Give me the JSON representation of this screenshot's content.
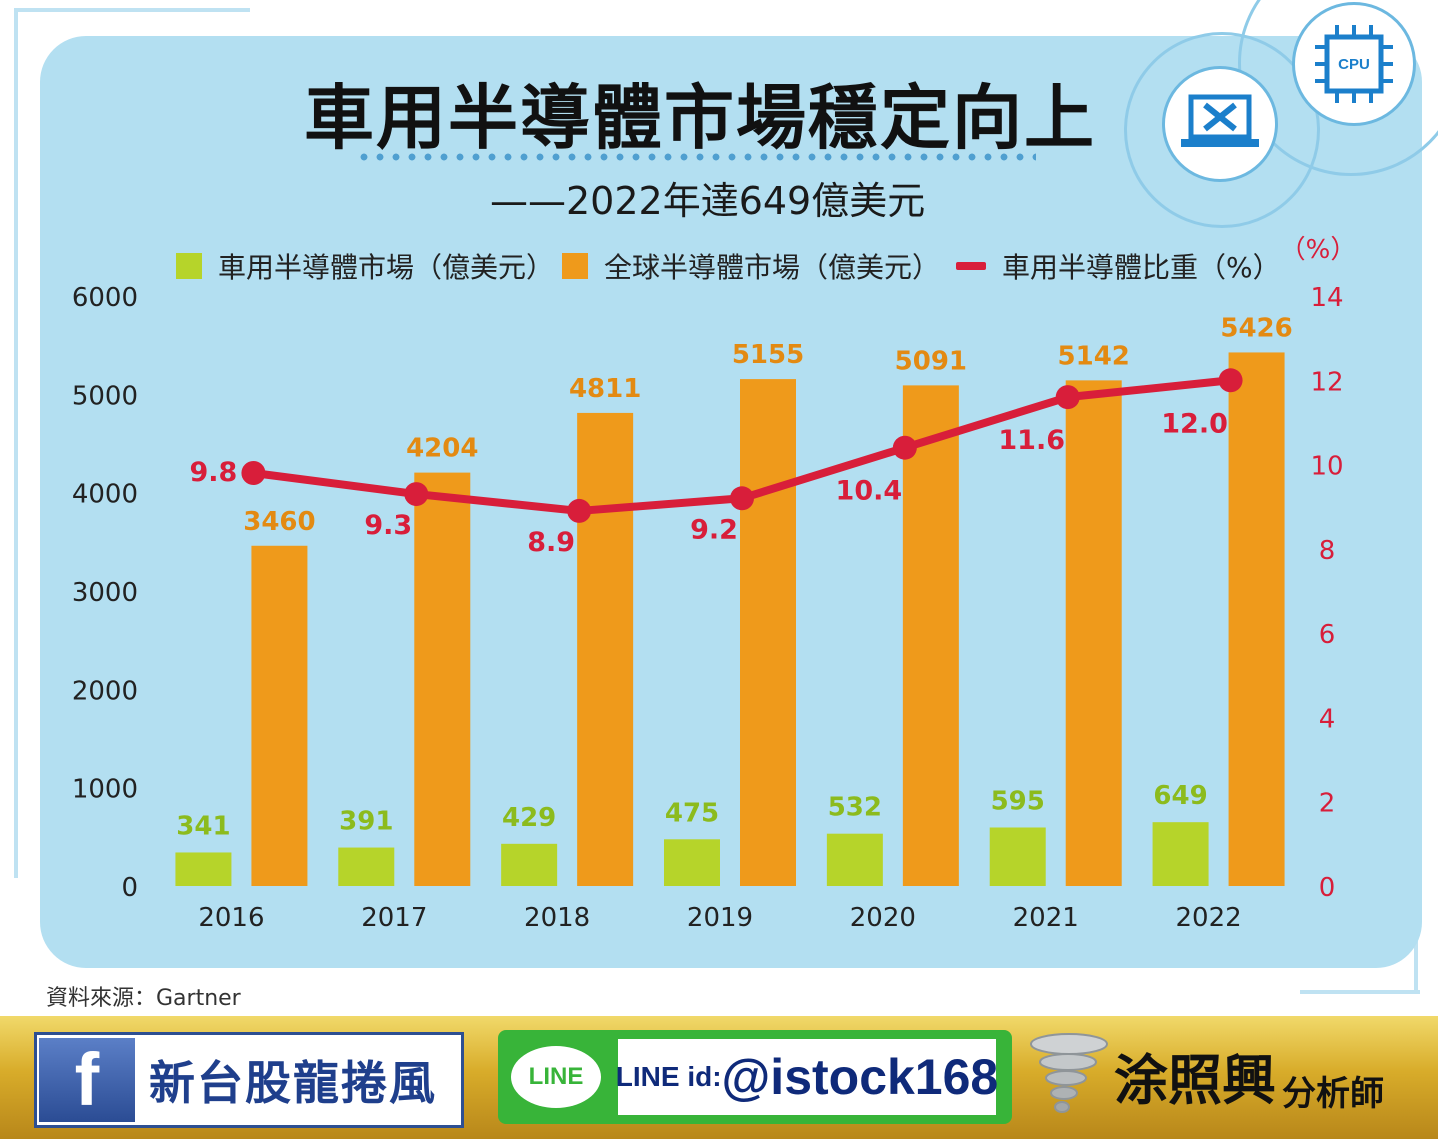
{
  "title": "車用半導體市場穩定向上",
  "subtitle": "——2022年達649億美元",
  "legend": {
    "auto": "車用半導體市場（億美元）",
    "global": "全球半導體市場（億美元）",
    "ratio": "車用半導體比重（%）"
  },
  "source": "資料來源：Gartner",
  "colors": {
    "auto": "#b6d42a",
    "global": "#ef9a1b",
    "ratio": "#d81e3a",
    "auto_label": "#8cbb1d",
    "global_label": "#e38a12",
    "ratio_label": "#d81e3a",
    "panel": "#b3dff1"
  },
  "chart_data": {
    "type": "bar",
    "categories": [
      "2016",
      "2017",
      "2018",
      "2019",
      "2020",
      "2021",
      "2022"
    ],
    "series": [
      {
        "name": "車用半導體市場（億美元）",
        "type": "bar",
        "axis": "left",
        "values": [
          341,
          391,
          429,
          475,
          532,
          595,
          649
        ]
      },
      {
        "name": "全球半導體市場（億美元）",
        "type": "bar",
        "axis": "left",
        "values": [
          3460,
          4204,
          4811,
          5155,
          5091,
          5142,
          5426
        ]
      },
      {
        "name": "車用半導體比重（%）",
        "type": "line",
        "axis": "right",
        "values": [
          9.8,
          9.3,
          8.9,
          9.2,
          10.4,
          11.6,
          12.0
        ]
      }
    ],
    "y_left": {
      "ylim": [
        0,
        6000
      ],
      "ticks": [
        "0",
        "1000",
        "2000",
        "3000",
        "4000",
        "5000",
        "6000"
      ]
    },
    "y_right": {
      "label": "（%）",
      "ylim": [
        0,
        14
      ],
      "ticks": [
        "0",
        "2",
        "4",
        "6",
        "8",
        "10",
        "12",
        "14"
      ]
    },
    "ratio_labels": [
      "9.8",
      "9.3",
      "8.9",
      "9.2",
      "10.4",
      "11.6",
      "12.0"
    ],
    "grid": false,
    "legend_position": "top"
  },
  "banner": {
    "facebook_icon": "facebook-icon",
    "facebook_text": "新台股龍捲風",
    "line_icon": "line-icon",
    "line_logo_text": "LINE",
    "line_id_prefix": "LINE id:",
    "line_id": "@istock168",
    "tornado_icon": "tornado-icon",
    "analyst_name": "涂照興",
    "analyst_title": "分析師"
  },
  "decor": {
    "laptop_icon": "laptop-tools-icon",
    "cpu_icon": "cpu-icon",
    "cpu_text": "CPU"
  }
}
